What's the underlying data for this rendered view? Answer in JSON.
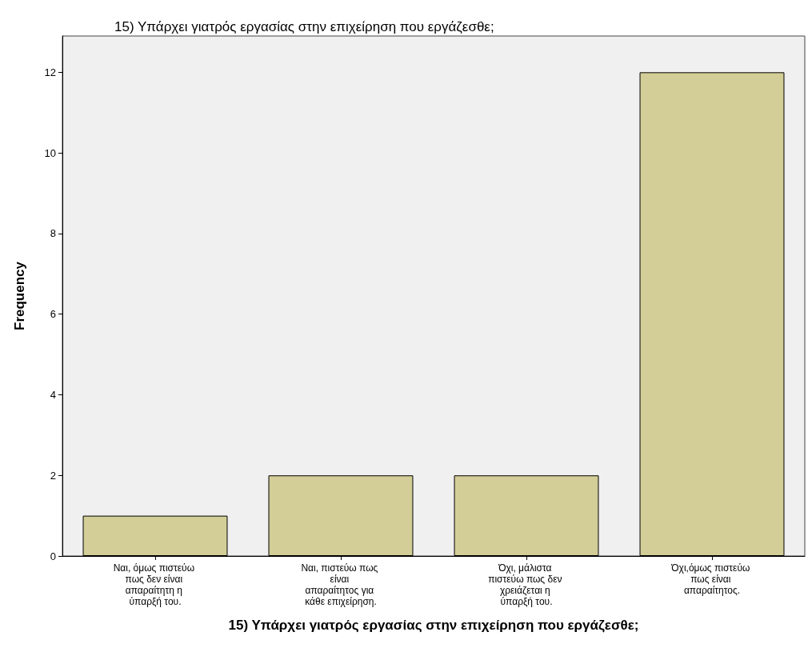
{
  "chart_data": {
    "type": "bar",
    "title": "15) Υπάρχει γιατρός εργασίας στην επιχείρηση που εργάζεσθε;",
    "xlabel": "15) Υπάρχει γιατρός εργασίας στην επιχείρηση που εργάζεσθε;",
    "ylabel": "Frequency",
    "categories": [
      "Ναι, όμως πιστεύω πως δεν είναι απαραίτητη η ύπαρξή του.",
      "Ναι, πιστεύω πως είναι απαραίτητος για κάθε επιχείρηση.",
      "Όχι, μάλιστα πιστεύω πως δεν χρειάζεται η ύπαρξή του.",
      "Όχι,όμως πιστεύω πως είναι απαραίτητος."
    ],
    "values": [
      1,
      2,
      2,
      12
    ],
    "color": "#d3ce97",
    "ylim": [
      0,
      12.9
    ],
    "yticks": [
      0,
      2,
      4,
      6,
      8,
      10,
      12
    ]
  }
}
